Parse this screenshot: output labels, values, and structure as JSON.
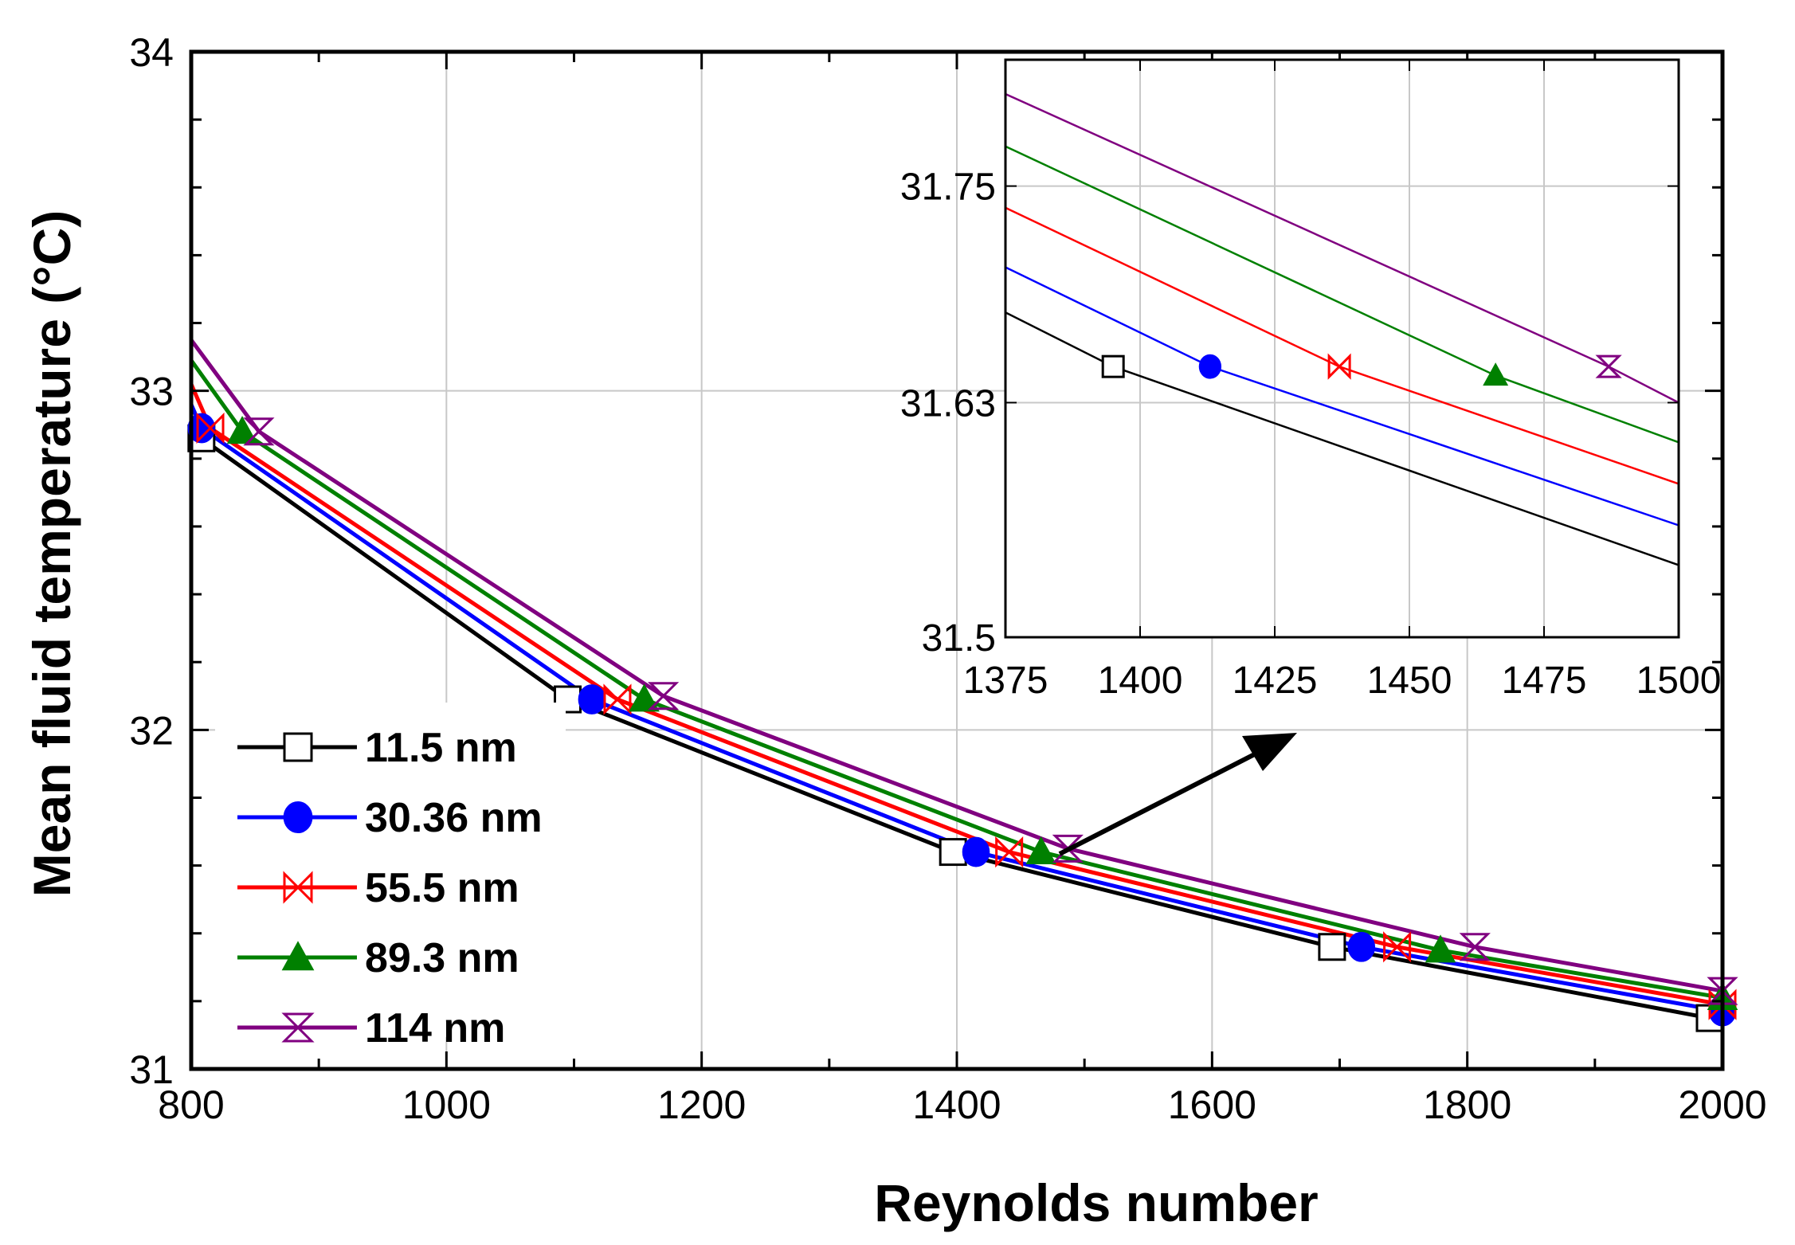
{
  "chart_data": [
    {
      "id": "main",
      "type": "line",
      "title": "",
      "xlabel": "Reynolds number",
      "ylabel": "Mean fluid temperature (°C)",
      "xlim": [
        800,
        2000
      ],
      "ylim": [
        31,
        34
      ],
      "xticks": [
        800,
        1000,
        1200,
        1400,
        1600,
        1800,
        2000
      ],
      "xtick_labels": [
        "800",
        "1000",
        "1200",
        "1400",
        "1600",
        "1800",
        "2000"
      ],
      "yticks": [
        31,
        32,
        33,
        34
      ],
      "ytick_labels": [
        "31",
        "32",
        "33",
        "34"
      ],
      "grid": true,
      "legend_position": "bottom-left",
      "series": [
        {
          "name": "11.5 nm",
          "color": "#000000",
          "marker": "open-square",
          "x": [
            808,
            1095,
            1397,
            1694,
            1990
          ],
          "y": [
            32.86,
            32.09,
            31.64,
            31.36,
            31.15
          ],
          "line_start": 32.9,
          "line_end": 31.13
        },
        {
          "name": "30.36 nm",
          "color": "#0000ff",
          "marker": "filled-circle",
          "x": [
            808,
            1114,
            1415,
            1717,
            2000
          ],
          "y": [
            32.89,
            32.09,
            31.64,
            31.36,
            31.17
          ],
          "line_start": 32.96,
          "line_end": 31.16
        },
        {
          "name": "55.5 nm",
          "color": "#ff0000",
          "marker": "open-bowtie",
          "x": [
            815,
            1134,
            1441,
            1745,
            2000
          ],
          "y": [
            32.89,
            32.09,
            31.64,
            31.36,
            31.19
          ],
          "line_start": 33.02,
          "line_end": 31.19
        },
        {
          "name": "89.3 nm",
          "color": "#008000",
          "marker": "filled-triangle",
          "x": [
            840,
            1155,
            1466,
            1779,
            2000
          ],
          "y": [
            32.88,
            32.09,
            31.64,
            31.35,
            31.21
          ],
          "line_start": 33.09,
          "line_end": 31.21
        },
        {
          "name": "114 nm",
          "color": "#800080",
          "marker": "open-hourglass",
          "x": [
            853,
            1170,
            1487,
            1806,
            2000
          ],
          "y": [
            32.88,
            32.1,
            31.65,
            31.36,
            31.23
          ],
          "line_start": 33.15,
          "line_end": 31.23
        }
      ],
      "annotation": "arrow from marker at Re 1487 to zoomed inset"
    },
    {
      "id": "inset",
      "type": "line",
      "title": "",
      "xlabel": "",
      "ylabel": "",
      "xlim": [
        1375,
        1500
      ],
      "ylim": [
        31.5,
        31.82
      ],
      "xticks": [
        1375,
        1400,
        1425,
        1450,
        1475,
        1500
      ],
      "xtick_labels": [
        "1375",
        "1400",
        "1425",
        "1450",
        "1475",
        "1500"
      ],
      "yticks": [
        31.5,
        31.63,
        31.75
      ],
      "ytick_labels": [
        "31.5",
        "31.63",
        "31.75"
      ],
      "grid": true,
      "series": [
        {
          "name": "11.5 nm",
          "color": "#000000",
          "marker": "open-square",
          "lines": [
            [
              1375,
              31.68
            ],
            [
              1395,
              31.65
            ],
            [
              1500,
              31.54
            ]
          ],
          "markers": [
            [
              1395,
              31.65
            ]
          ]
        },
        {
          "name": "30.36 nm",
          "color": "#0000ff",
          "marker": "filled-circle",
          "lines": [
            [
              1375,
              31.705
            ],
            [
              1413,
              31.65
            ],
            [
              1500,
              31.562
            ]
          ],
          "markers": [
            [
              1413,
              31.65
            ]
          ]
        },
        {
          "name": "55.5 nm",
          "color": "#ff0000",
          "marker": "open-bowtie",
          "lines": [
            [
              1375,
              31.738
            ],
            [
              1437,
              31.65
            ],
            [
              1500,
              31.585
            ]
          ],
          "markers": [
            [
              1437,
              31.65
            ]
          ]
        },
        {
          "name": "89.3 nm",
          "color": "#008000",
          "marker": "filled-triangle",
          "lines": [
            [
              1375,
              31.772
            ],
            [
              1466,
              31.645
            ],
            [
              1500,
              31.608
            ]
          ],
          "markers": [
            [
              1466,
              31.645
            ]
          ]
        },
        {
          "name": "114 nm",
          "color": "#800080",
          "marker": "open-hourglass",
          "lines": [
            [
              1375,
              31.801
            ],
            [
              1487,
              31.65
            ],
            [
              1500,
              31.63
            ]
          ],
          "markers": [
            [
              1487,
              31.65
            ]
          ]
        }
      ]
    }
  ]
}
